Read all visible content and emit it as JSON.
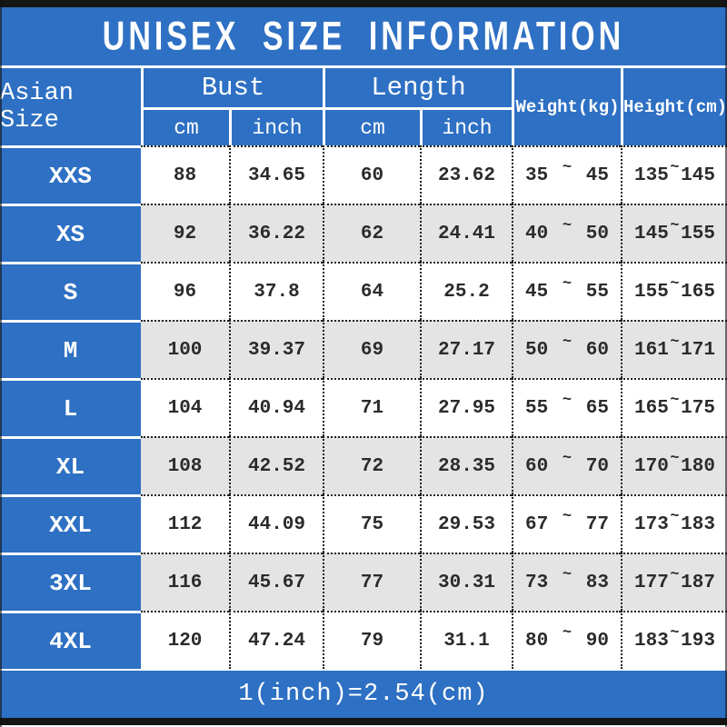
{
  "title": "UNISEX SIZE INFORMATION",
  "tilde": "~",
  "header": {
    "size": "Asian Size",
    "bust": "Bust",
    "length": "Length",
    "cm": "cm",
    "inch": "inch",
    "weight": "Weight(kg)",
    "height": "Height(cm)"
  },
  "rows": [
    {
      "size": "XXS",
      "bust_cm": "88",
      "bust_inch": "34.65",
      "length_cm": "60",
      "length_inch": "23.62",
      "weight_min": "35",
      "weight_max": "45",
      "height_min": "135",
      "height_max": "145"
    },
    {
      "size": "XS",
      "bust_cm": "92",
      "bust_inch": "36.22",
      "length_cm": "62",
      "length_inch": "24.41",
      "weight_min": "40",
      "weight_max": "50",
      "height_min": "145",
      "height_max": "155"
    },
    {
      "size": "S",
      "bust_cm": "96",
      "bust_inch": "37.8",
      "length_cm": "64",
      "length_inch": "25.2",
      "weight_min": "45",
      "weight_max": "55",
      "height_min": "155",
      "height_max": "165"
    },
    {
      "size": "M",
      "bust_cm": "100",
      "bust_inch": "39.37",
      "length_cm": "69",
      "length_inch": "27.17",
      "weight_min": "50",
      "weight_max": "60",
      "height_min": "161",
      "height_max": "171"
    },
    {
      "size": "L",
      "bust_cm": "104",
      "bust_inch": "40.94",
      "length_cm": "71",
      "length_inch": "27.95",
      "weight_min": "55",
      "weight_max": "65",
      "height_min": "165",
      "height_max": "175"
    },
    {
      "size": "XL",
      "bust_cm": "108",
      "bust_inch": "42.52",
      "length_cm": "72",
      "length_inch": "28.35",
      "weight_min": "60",
      "weight_max": "70",
      "height_min": "170",
      "height_max": "180"
    },
    {
      "size": "XXL",
      "bust_cm": "112",
      "bust_inch": "44.09",
      "length_cm": "75",
      "length_inch": "29.53",
      "weight_min": "67",
      "weight_max": "77",
      "height_min": "173",
      "height_max": "183"
    },
    {
      "size": "3XL",
      "bust_cm": "116",
      "bust_inch": "45.67",
      "length_cm": "77",
      "length_inch": "30.31",
      "weight_min": "73",
      "weight_max": "83",
      "height_min": "177",
      "height_max": "187"
    },
    {
      "size": "4XL",
      "bust_cm": "120",
      "bust_inch": "47.24",
      "length_cm": "79",
      "length_inch": "31.1",
      "weight_min": "80",
      "weight_max": "90",
      "height_min": "183",
      "height_max": "193"
    }
  ],
  "footer": "1(inch)=2.54(cm)",
  "colors": {
    "blue": "#2e70c3",
    "alt_row_gray": "#e4e4e4",
    "dotted_line": "#1f1f1f",
    "frame_black": "#151515",
    "text_dark": "#2b2b2b",
    "text_white": "#ffffff"
  },
  "chart_data": {
    "type": "table",
    "title": "UNISEX SIZE INFORMATION",
    "columns": [
      "Asian Size",
      "Bust cm",
      "Bust inch",
      "Length cm",
      "Length inch",
      "Weight(kg)",
      "Height(cm)"
    ],
    "rows": [
      [
        "XXS",
        88,
        34.65,
        60,
        23.62,
        "35~45",
        "135~145"
      ],
      [
        "XS",
        92,
        36.22,
        62,
        24.41,
        "40~50",
        "145~155"
      ],
      [
        "S",
        96,
        37.8,
        64,
        25.2,
        "45~55",
        "155~165"
      ],
      [
        "M",
        100,
        39.37,
        69,
        27.17,
        "50~60",
        "161~171"
      ],
      [
        "L",
        104,
        40.94,
        71,
        27.95,
        "55~65",
        "165~175"
      ],
      [
        "XL",
        108,
        42.52,
        72,
        28.35,
        "60~70",
        "170~180"
      ],
      [
        "XXL",
        112,
        44.09,
        75,
        29.53,
        "67~77",
        "173~183"
      ],
      [
        "3XL",
        116,
        45.67,
        77,
        30.31,
        "73~83",
        "177~187"
      ],
      [
        "4XL",
        120,
        47.24,
        79,
        31.1,
        "80~90",
        "183~193"
      ]
    ],
    "note": "1(inch)=2.54(cm)"
  }
}
